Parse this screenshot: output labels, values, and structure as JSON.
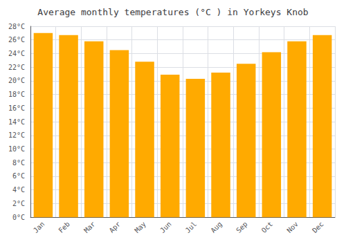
{
  "chart_data": {
    "type": "bar",
    "title": "Average monthly temperatures (°C ) in Yorkeys Knob",
    "categories": [
      "Jan",
      "Feb",
      "Mar",
      "Apr",
      "May",
      "Jun",
      "Jul",
      "Aug",
      "Sep",
      "Oct",
      "Nov",
      "Dec"
    ],
    "values": [
      27.0,
      26.7,
      25.8,
      24.5,
      22.8,
      20.9,
      20.3,
      21.2,
      22.5,
      24.2,
      25.8,
      26.7
    ],
    "color": "#FFAA00",
    "ylim": [
      0,
      28
    ],
    "yticks": [
      {
        "value": 0,
        "label": "0°C"
      },
      {
        "value": 2,
        "label": "2°C"
      },
      {
        "value": 4,
        "label": "4°C"
      },
      {
        "value": 6,
        "label": "6°C"
      },
      {
        "value": 8,
        "label": "8°C"
      },
      {
        "value": 10,
        "label": "10°C"
      },
      {
        "value": 12,
        "label": "12°C"
      },
      {
        "value": 14,
        "label": "14°C"
      },
      {
        "value": 16,
        "label": "16°C"
      },
      {
        "value": 18,
        "label": "18°C"
      },
      {
        "value": 20,
        "label": "20°C"
      },
      {
        "value": 22,
        "label": "22°C"
      },
      {
        "value": 24,
        "label": "24°C"
      },
      {
        "value": 26,
        "label": "26°C"
      },
      {
        "value": 28,
        "label": "28°C"
      }
    ],
    "grid": true
  }
}
